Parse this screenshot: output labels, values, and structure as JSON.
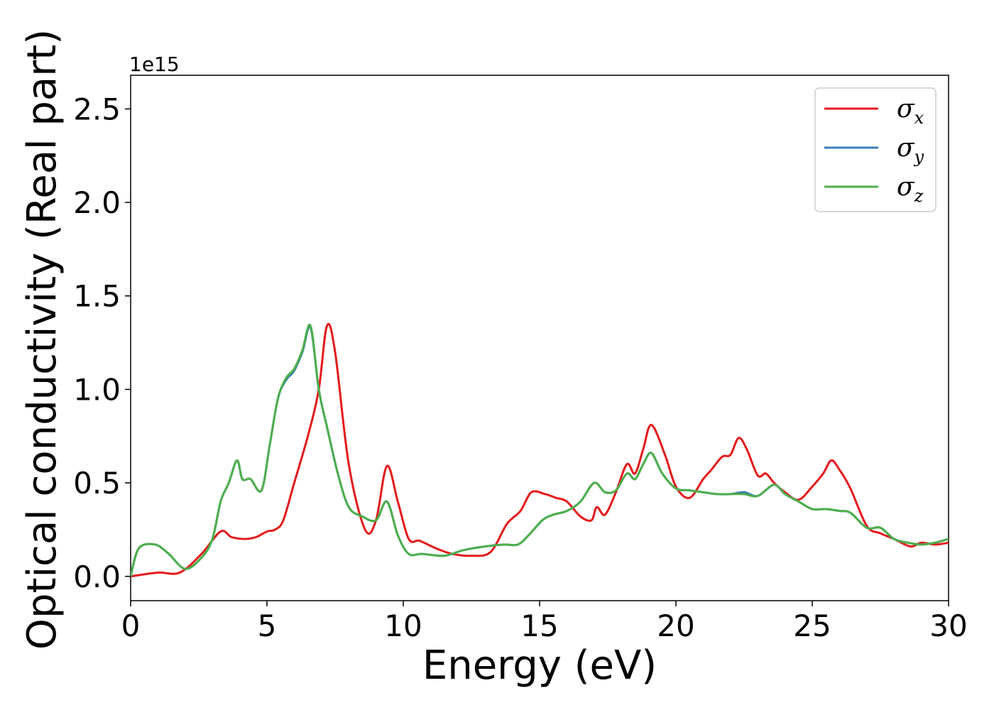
{
  "chart_data": {
    "type": "line",
    "title": "",
    "xlabel": "Energy (eV)",
    "ylabel": "Optical conductivity (Real part)",
    "y_offset_label": "1e15",
    "xlim": [
      0,
      30
    ],
    "ylim": [
      -0.13,
      2.68
    ],
    "x_ticks": [
      0,
      5,
      10,
      15,
      20,
      25,
      30
    ],
    "x_tick_labels": [
      "0",
      "5",
      "10",
      "15",
      "20",
      "25",
      "30"
    ],
    "y_ticks": [
      0.0,
      0.5,
      1.0,
      1.5,
      2.0,
      2.5
    ],
    "y_tick_labels": [
      "0.0",
      "0.5",
      "1.0",
      "1.5",
      "2.0",
      "2.5"
    ],
    "grid": false,
    "legend_position": "top-right",
    "series": [
      {
        "name": "σ_x",
        "legend_symbol": "σ",
        "legend_sub": "x",
        "color": "#e41a1c",
        "x": [
          0,
          1,
          1.8,
          2.6,
          3.3,
          3.7,
          4.2,
          4.6,
          5.0,
          5.3,
          5.6,
          6.0,
          6.5,
          6.9,
          7.2,
          7.5,
          8.0,
          8.6,
          9.0,
          9.4,
          9.8,
          10.2,
          10.6,
          11.2,
          11.8,
          12.5,
          13.2,
          13.8,
          14.3,
          14.7,
          15.2,
          15.6,
          16.0,
          16.5,
          16.9,
          17.1,
          17.4,
          17.8,
          18.2,
          18.5,
          18.8,
          19.1,
          19.6,
          20.0,
          20.5,
          21.0,
          21.3,
          21.7,
          22.0,
          22.3,
          22.6,
          23.0,
          23.3,
          23.6,
          24.0,
          24.5,
          25.0,
          25.4,
          25.7,
          26.0,
          26.4,
          27.0,
          27.5,
          28.0,
          28.6,
          29.0,
          29.5,
          30.0
        ],
        "y": [
          0.0,
          0.02,
          0.02,
          0.12,
          0.24,
          0.21,
          0.2,
          0.21,
          0.24,
          0.25,
          0.3,
          0.5,
          0.75,
          1.0,
          1.34,
          1.2,
          0.6,
          0.25,
          0.3,
          0.59,
          0.4,
          0.2,
          0.19,
          0.15,
          0.12,
          0.11,
          0.13,
          0.28,
          0.35,
          0.45,
          0.44,
          0.42,
          0.4,
          0.32,
          0.3,
          0.37,
          0.33,
          0.45,
          0.6,
          0.55,
          0.68,
          0.81,
          0.65,
          0.48,
          0.42,
          0.52,
          0.57,
          0.64,
          0.65,
          0.74,
          0.68,
          0.54,
          0.55,
          0.5,
          0.45,
          0.41,
          0.48,
          0.55,
          0.62,
          0.57,
          0.47,
          0.27,
          0.23,
          0.2,
          0.16,
          0.18,
          0.17,
          0.18
        ]
      },
      {
        "name": "σ_y",
        "legend_symbol": "σ",
        "legend_sub": "y",
        "color": "#377eb8",
        "x": [
          0,
          0.3,
          0.9,
          1.4,
          2.0,
          2.6,
          3.0,
          3.3,
          3.6,
          3.9,
          4.1,
          4.4,
          4.8,
          5.1,
          5.4,
          5.7,
          6.0,
          6.3,
          6.6,
          6.9,
          7.2,
          7.6,
          8.0,
          8.5,
          9.0,
          9.4,
          9.8,
          10.2,
          10.7,
          11.5,
          12.2,
          13.0,
          13.7,
          14.2,
          14.6,
          15.1,
          15.5,
          16.0,
          16.5,
          17.0,
          17.4,
          17.8,
          18.2,
          18.5,
          18.8,
          19.1,
          19.5,
          20.0,
          20.5,
          21.0,
          21.5,
          22.0,
          22.5,
          23.0,
          23.6,
          24.0,
          24.5,
          25.0,
          25.5,
          26.0,
          26.4,
          27.0,
          27.5,
          28.0,
          28.5,
          29.0,
          29.5,
          30.0
        ],
        "y": [
          0.0,
          0.15,
          0.17,
          0.12,
          0.04,
          0.1,
          0.2,
          0.4,
          0.5,
          0.62,
          0.52,
          0.52,
          0.46,
          0.7,
          0.95,
          1.05,
          1.1,
          1.2,
          1.33,
          1.0,
          0.8,
          0.55,
          0.37,
          0.32,
          0.3,
          0.4,
          0.22,
          0.12,
          0.12,
          0.11,
          0.14,
          0.16,
          0.17,
          0.17,
          0.22,
          0.3,
          0.33,
          0.35,
          0.4,
          0.5,
          0.45,
          0.46,
          0.55,
          0.52,
          0.6,
          0.66,
          0.55,
          0.47,
          0.46,
          0.45,
          0.44,
          0.44,
          0.45,
          0.43,
          0.49,
          0.44,
          0.4,
          0.36,
          0.36,
          0.35,
          0.34,
          0.26,
          0.26,
          0.2,
          0.18,
          0.17,
          0.18,
          0.2
        ]
      },
      {
        "name": "σ_z",
        "legend_symbol": "σ",
        "legend_sub": "z",
        "color": "#4daf4a",
        "x": [
          0,
          0.3,
          0.9,
          1.4,
          2.0,
          2.6,
          3.0,
          3.3,
          3.6,
          3.9,
          4.1,
          4.4,
          4.8,
          5.1,
          5.4,
          5.7,
          6.0,
          6.3,
          6.6,
          6.9,
          7.2,
          7.6,
          8.0,
          8.5,
          9.0,
          9.4,
          9.8,
          10.2,
          10.7,
          11.5,
          12.2,
          13.0,
          13.7,
          14.2,
          14.6,
          15.1,
          15.5,
          16.0,
          16.5,
          17.0,
          17.4,
          17.8,
          18.2,
          18.5,
          18.8,
          19.1,
          19.5,
          20.0,
          20.5,
          21.0,
          21.5,
          22.0,
          22.5,
          23.0,
          23.6,
          24.0,
          24.5,
          25.0,
          25.5,
          26.0,
          26.4,
          27.0,
          27.5,
          28.0,
          28.5,
          29.0,
          29.5,
          30.0
        ],
        "y": [
          0.0,
          0.15,
          0.17,
          0.12,
          0.04,
          0.1,
          0.2,
          0.4,
          0.5,
          0.62,
          0.52,
          0.52,
          0.46,
          0.7,
          0.95,
          1.06,
          1.11,
          1.21,
          1.34,
          1.0,
          0.8,
          0.55,
          0.37,
          0.32,
          0.3,
          0.4,
          0.22,
          0.12,
          0.12,
          0.11,
          0.14,
          0.16,
          0.17,
          0.17,
          0.22,
          0.3,
          0.33,
          0.35,
          0.4,
          0.5,
          0.45,
          0.46,
          0.55,
          0.52,
          0.6,
          0.66,
          0.55,
          0.47,
          0.46,
          0.45,
          0.44,
          0.44,
          0.44,
          0.43,
          0.49,
          0.44,
          0.4,
          0.36,
          0.36,
          0.35,
          0.34,
          0.26,
          0.26,
          0.2,
          0.18,
          0.17,
          0.18,
          0.2
        ]
      }
    ]
  }
}
